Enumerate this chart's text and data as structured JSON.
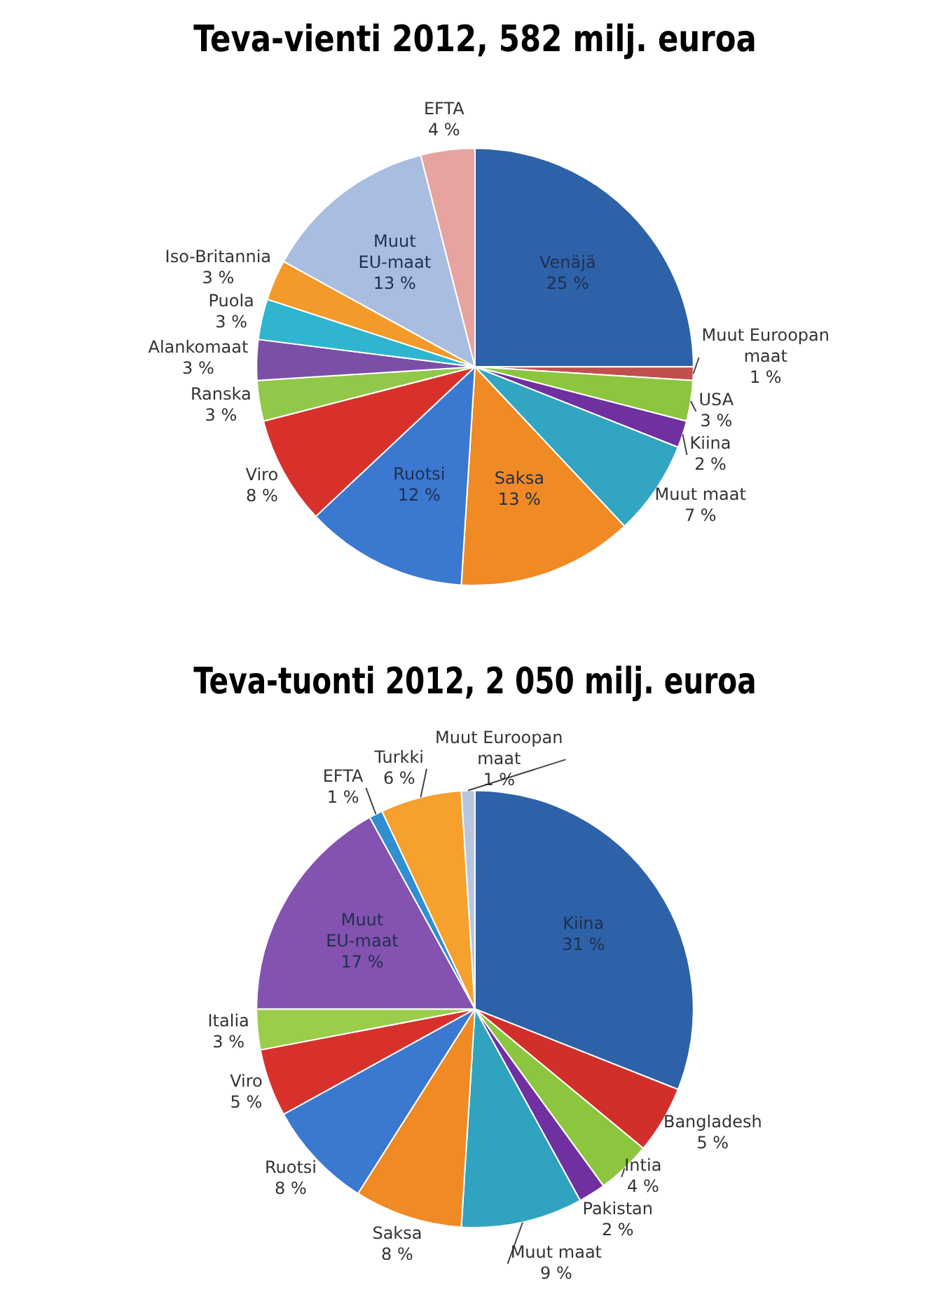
{
  "chart_data": [
    {
      "type": "pie",
      "title": "Teva-vienti 2012, 582 milj. euroa",
      "categories": [
        "Venäjä",
        "Muut Euroopan maat",
        "USA",
        "Kiina",
        "Muut maat",
        "Saksa",
        "Ruotsi",
        "Viro",
        "Ranska",
        "Alankomaat",
        "Puola",
        "Iso-Britannia",
        "Muut EU-maat",
        "EFTA"
      ],
      "values": [
        25,
        1,
        3,
        2,
        7,
        13,
        12,
        8,
        3,
        3,
        3,
        3,
        13,
        4
      ],
      "value_labels": [
        "25 %",
        "1 %",
        "3 %",
        "2 %",
        "7 %",
        "13 %",
        "12 %",
        "8 %",
        "3 %",
        "3 %",
        "3 %",
        "3 %",
        "13 %",
        "4 %"
      ],
      "colors": [
        "#2e62a8",
        "#c0504d",
        "#8cc63f",
        "#7030a0",
        "#31a5c1",
        "#f08a24",
        "#3b78d0",
        "#d8312c",
        "#92c84a",
        "#7b4fa8",
        "#2fb5d0",
        "#f39a2a",
        "#a9bde0",
        "#e6a3a0"
      ],
      "legend": false
    },
    {
      "type": "pie",
      "title": "Teva-tuonti 2012, 2 050 milj. euroa",
      "categories": [
        "Kiina",
        "Bangladesh",
        "Intia",
        "Pakistan",
        "Muut maat",
        "Saksa",
        "Ruotsi",
        "Viro",
        "Italia",
        "Muut EU-maat",
        "EFTA",
        "Turkki",
        "Muut Euroopan maat"
      ],
      "values": [
        31,
        5,
        4,
        2,
        9,
        8,
        8,
        5,
        3,
        17,
        1,
        6,
        1
      ],
      "value_labels": [
        "31 %",
        "5 %",
        "4 %",
        "2 %",
        "9 %",
        "8 %",
        "8 %",
        "5 %",
        "3 %",
        "17 %",
        "1 %",
        "6 %",
        "1 %"
      ],
      "colors": [
        "#2e62a8",
        "#d12f2a",
        "#8cc63f",
        "#7030a0",
        "#2fa3bf",
        "#f08a24",
        "#3b78d0",
        "#d8312c",
        "#9acd4a",
        "#8452b0",
        "#2f8fd0",
        "#f6a02d",
        "#b8c6e0"
      ],
      "legend": false
    }
  ]
}
